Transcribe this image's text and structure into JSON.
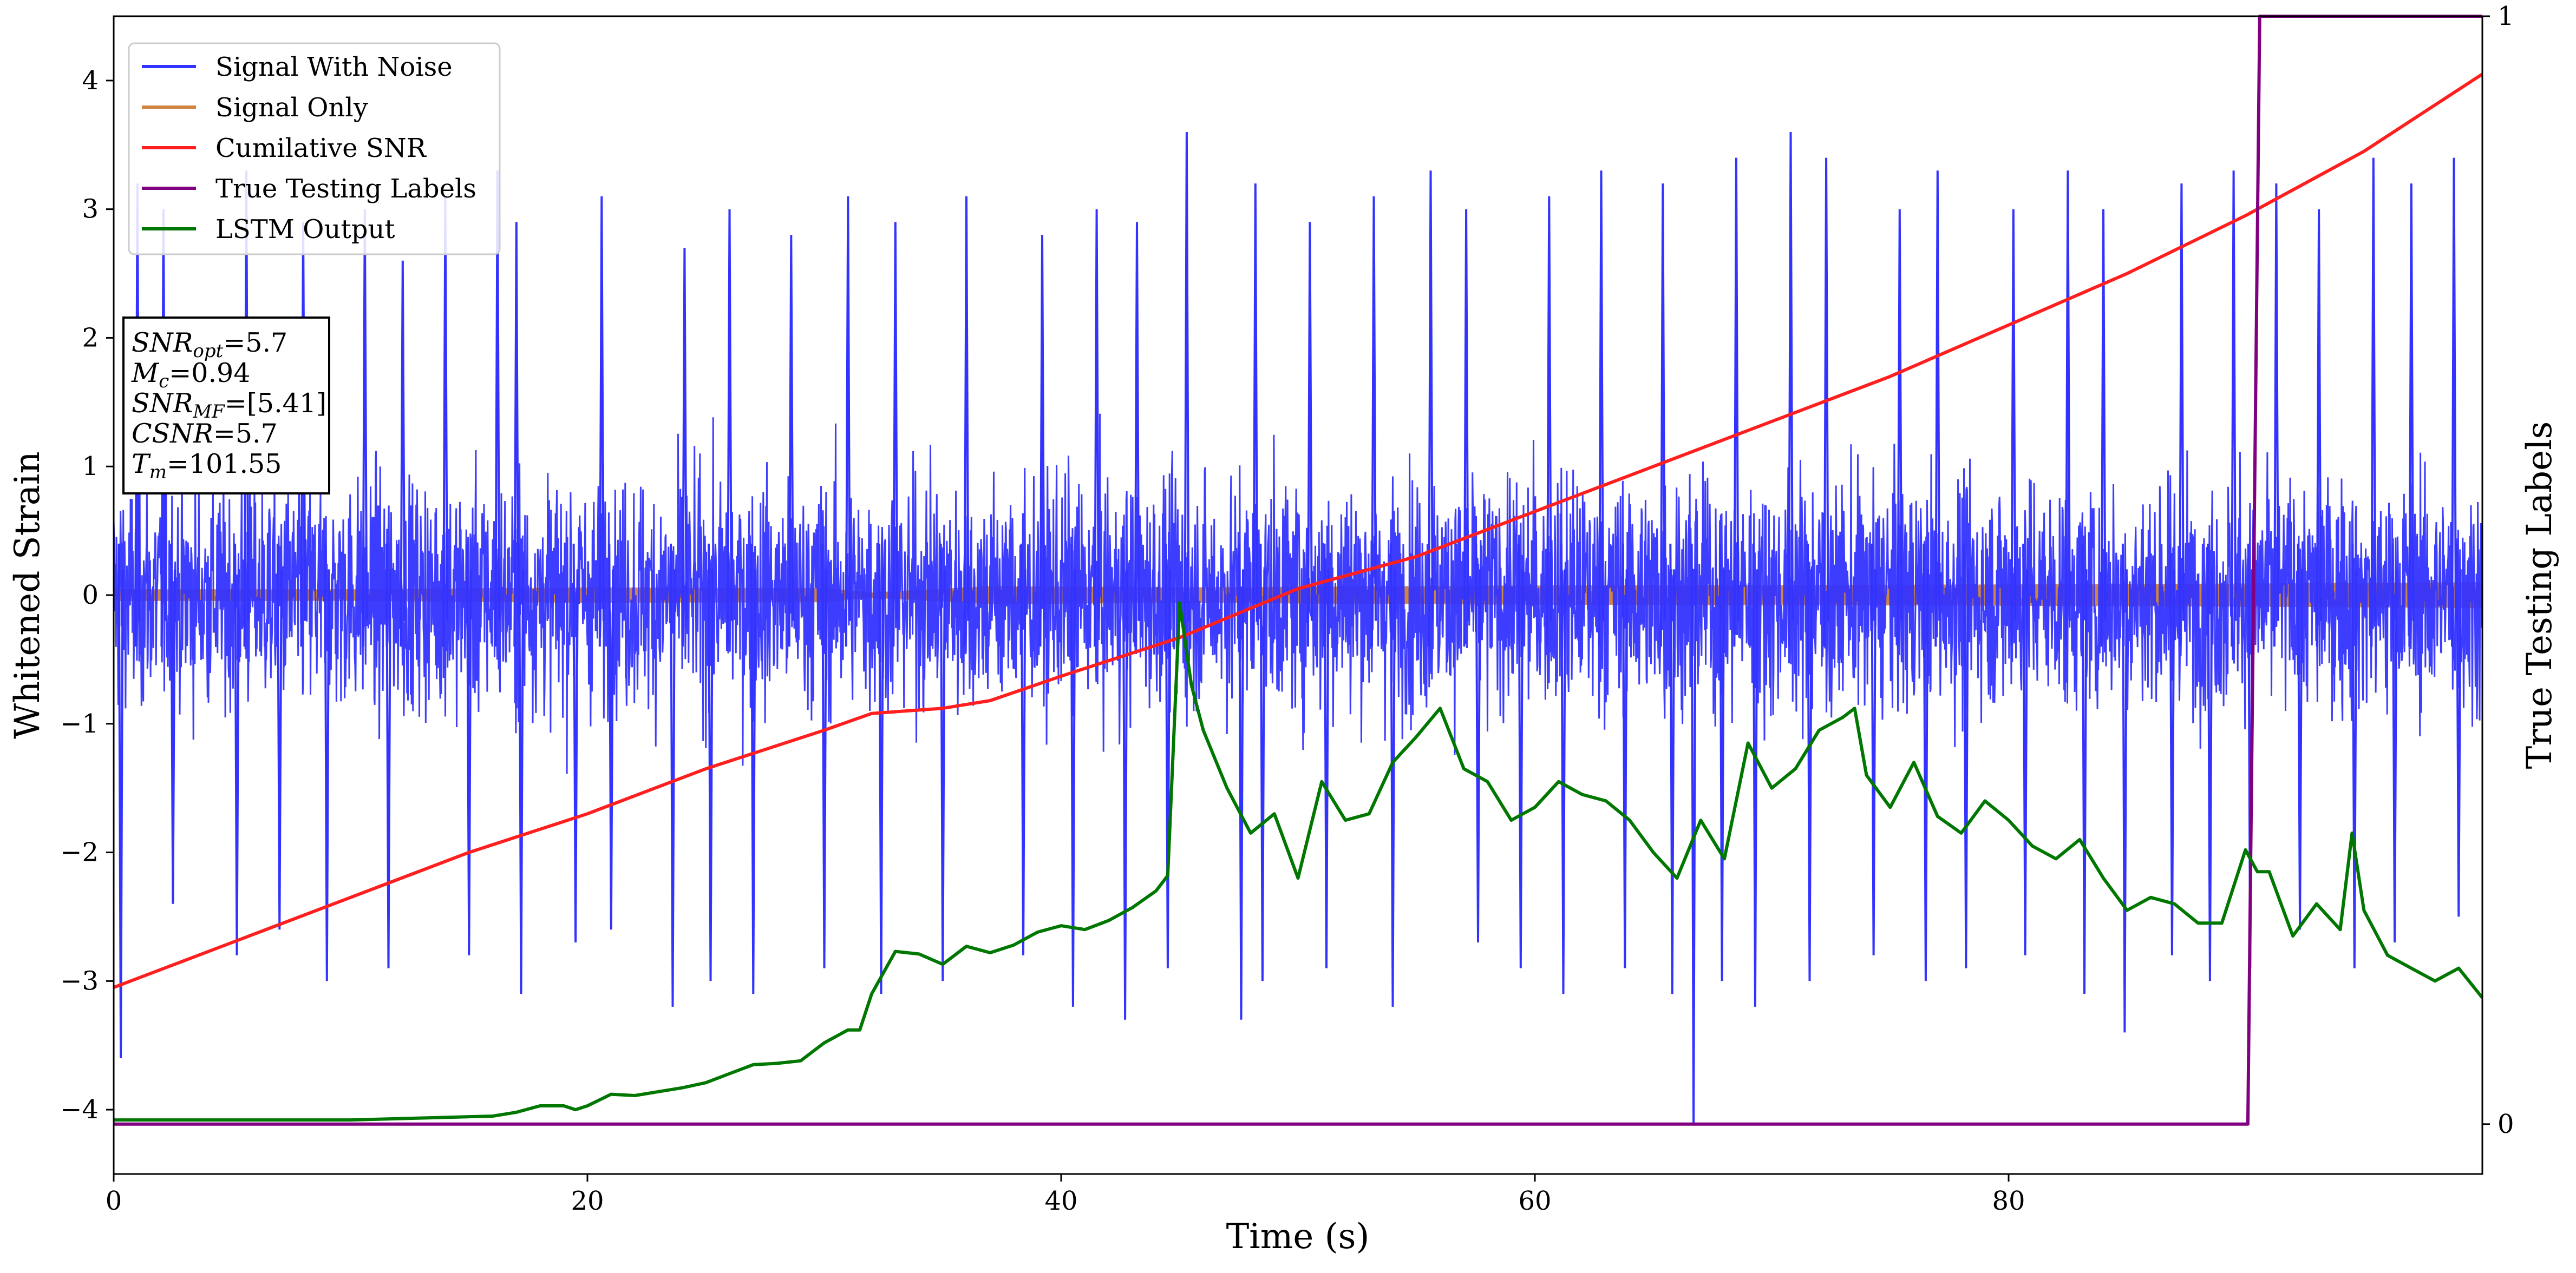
{
  "chart_data": {
    "type": "line",
    "xlabel": "Time (s)",
    "ylabel": "Whitened Strain",
    "y2label": "True Testing Labels",
    "xlim": [
      0,
      100
    ],
    "ylim": [
      -4.5,
      4.5
    ],
    "y2lim": [
      -0.045,
      1.0
    ],
    "x_ticks": [
      0,
      20,
      40,
      60,
      80
    ],
    "y_ticks": [
      -4,
      -3,
      -2,
      -1,
      0,
      1,
      2,
      3,
      4
    ],
    "y2_ticks": [
      0,
      1
    ],
    "grid": false,
    "legend_position": "top-left",
    "info_box": [
      {
        "base": "SNR",
        "sub": "opt",
        "value": "=5.7"
      },
      {
        "base": "M",
        "sub": "c",
        "value": "=0.94"
      },
      {
        "base": "SNR",
        "sub": "MF",
        "value": "=[5.41]"
      },
      {
        "base": "CSNR",
        "sub": "",
        "value": "=5.7"
      },
      {
        "base": "T",
        "sub": "m",
        "value": "=101.55"
      }
    ],
    "series": [
      {
        "name": "Signal With Noise",
        "color": "#3333ff",
        "axis": "left",
        "style": "dense noise band",
        "spikes_high": [
          [
            1.0,
            3.2
          ],
          [
            2.1,
            3.0
          ],
          [
            5.6,
            3.3
          ],
          [
            8.0,
            2.9
          ],
          [
            10.6,
            3.0
          ],
          [
            12.2,
            2.6
          ],
          [
            14.0,
            3.1
          ],
          [
            16.2,
            3.3
          ],
          [
            17.0,
            2.9
          ],
          [
            20.6,
            3.1
          ],
          [
            24.1,
            2.7
          ],
          [
            26.0,
            3.0
          ],
          [
            28.6,
            2.8
          ],
          [
            31.0,
            3.1
          ],
          [
            33.0,
            2.9
          ],
          [
            36.0,
            3.1
          ],
          [
            39.2,
            2.8
          ],
          [
            41.5,
            3.0
          ],
          [
            43.2,
            2.9
          ],
          [
            45.3,
            3.6
          ],
          [
            48.2,
            3.2
          ],
          [
            50.5,
            2.9
          ],
          [
            53.2,
            3.1
          ],
          [
            55.6,
            3.3
          ],
          [
            57.1,
            3.0
          ],
          [
            60.6,
            3.1
          ],
          [
            62.8,
            3.3
          ],
          [
            65.4,
            3.2
          ],
          [
            68.5,
            3.4
          ],
          [
            70.8,
            3.6
          ],
          [
            72.3,
            3.4
          ],
          [
            75.4,
            3.0
          ],
          [
            77.0,
            3.3
          ],
          [
            80.2,
            3.0
          ],
          [
            82.5,
            3.3
          ],
          [
            84.0,
            3.0
          ],
          [
            87.3,
            3.2
          ],
          [
            89.5,
            3.3
          ],
          [
            91.3,
            3.2
          ],
          [
            93.1,
            3.0
          ],
          [
            95.4,
            3.4
          ],
          [
            97.0,
            3.2
          ],
          [
            98.8,
            3.4
          ]
        ],
        "spikes_low": [
          [
            0.3,
            -3.6
          ],
          [
            2.5,
            -2.4
          ],
          [
            5.2,
            -2.8
          ],
          [
            7.0,
            -2.6
          ],
          [
            9.0,
            -3.0
          ],
          [
            11.6,
            -2.9
          ],
          [
            15.0,
            -2.8
          ],
          [
            17.2,
            -3.1
          ],
          [
            19.5,
            -2.7
          ],
          [
            21.0,
            -2.6
          ],
          [
            23.6,
            -3.2
          ],
          [
            25.2,
            -3.0
          ],
          [
            27.0,
            -3.1
          ],
          [
            30.0,
            -2.9
          ],
          [
            32.4,
            -3.1
          ],
          [
            35.0,
            -3.0
          ],
          [
            38.4,
            -2.8
          ],
          [
            40.5,
            -3.2
          ],
          [
            42.7,
            -3.3
          ],
          [
            44.5,
            -2.9
          ],
          [
            47.6,
            -3.3
          ],
          [
            48.5,
            -3.0
          ],
          [
            51.2,
            -2.9
          ],
          [
            54.0,
            -3.2
          ],
          [
            57.6,
            -2.7
          ],
          [
            59.4,
            -2.9
          ],
          [
            61.2,
            -3.1
          ],
          [
            63.8,
            -2.9
          ],
          [
            65.8,
            -3.1
          ],
          [
            66.7,
            -4.1
          ],
          [
            67.9,
            -3.0
          ],
          [
            69.3,
            -3.2
          ],
          [
            71.6,
            -3.0
          ],
          [
            74.3,
            -2.8
          ],
          [
            76.5,
            -3.0
          ],
          [
            78.2,
            -2.9
          ],
          [
            80.7,
            -2.8
          ],
          [
            83.2,
            -3.1
          ],
          [
            84.9,
            -3.4
          ],
          [
            86.9,
            -2.8
          ],
          [
            88.5,
            -3.0
          ],
          [
            90.2,
            -2.9
          ],
          [
            92.3,
            -2.6
          ],
          [
            94.6,
            -2.9
          ],
          [
            96.3,
            -2.7
          ],
          [
            99.0,
            -2.5
          ]
        ]
      },
      {
        "name": "Signal Only",
        "color": "#cd853f",
        "axis": "left",
        "style": "thin oscillating band",
        "amplitude": [
          [
            0,
            0.045
          ],
          [
            10,
            0.045
          ],
          [
            20,
            0.06
          ],
          [
            30,
            0.055
          ],
          [
            32,
            0.02
          ],
          [
            37,
            0.07
          ],
          [
            45,
            0.06
          ],
          [
            60,
            0.075
          ],
          [
            75,
            0.08
          ],
          [
            90,
            0.09
          ],
          [
            100,
            0.1
          ]
        ]
      },
      {
        "name": "Cumilative SNR",
        "color": "#ff1f1f",
        "axis": "left",
        "x": [
          0,
          5,
          10,
          15,
          20,
          25,
          30,
          32,
          35,
          37,
          40,
          45,
          50,
          55,
          60,
          65,
          70,
          75,
          80,
          85,
          90,
          95,
          100
        ],
        "y": [
          -3.05,
          -2.7,
          -2.35,
          -2.0,
          -1.7,
          -1.35,
          -1.05,
          -0.92,
          -0.88,
          -0.82,
          -0.63,
          -0.33,
          0.05,
          0.3,
          0.65,
          1.0,
          1.35,
          1.7,
          2.1,
          2.5,
          2.95,
          3.45,
          4.05
        ]
      },
      {
        "name": "True Testing Labels",
        "color": "#800080",
        "axis": "right",
        "x": [
          0,
          90.1,
          90.6,
          100
        ],
        "y": [
          0,
          0,
          1,
          1
        ]
      },
      {
        "name": "LSTM Output",
        "color": "#007700",
        "axis": "left",
        "x": [
          0,
          5,
          10,
          12,
          14,
          16,
          17,
          18,
          19,
          19.5,
          20,
          21,
          22,
          23,
          24,
          25,
          26,
          27,
          28,
          29,
          30,
          30.5,
          31,
          31.5,
          32,
          33,
          34,
          35,
          36,
          37,
          38,
          39,
          40,
          41,
          42,
          43,
          44,
          44.5,
          45,
          45.5,
          46,
          47,
          48,
          49,
          50,
          51,
          52,
          53,
          54,
          55,
          56,
          57,
          58,
          59,
          60,
          61,
          62,
          63,
          64,
          65,
          66,
          67,
          68,
          69,
          70,
          71,
          72,
          73,
          73.5,
          74,
          75,
          76,
          77,
          78,
          79,
          80,
          81,
          82,
          83,
          84,
          85,
          86,
          87,
          88,
          89,
          90,
          90.5,
          91,
          92,
          93,
          94,
          94.5,
          95,
          96,
          97,
          98,
          99,
          100
        ],
        "y": [
          -4.08,
          -4.08,
          -4.08,
          -4.07,
          -4.06,
          -4.05,
          -4.02,
          -3.97,
          -3.97,
          -4.0,
          -3.97,
          -3.88,
          -3.89,
          -3.86,
          -3.83,
          -3.79,
          -3.72,
          -3.65,
          -3.64,
          -3.62,
          -3.48,
          -3.43,
          -3.38,
          -3.38,
          -3.1,
          -2.77,
          -2.79,
          -2.87,
          -2.73,
          -2.78,
          -2.72,
          -2.62,
          -2.57,
          -2.6,
          -2.53,
          -2.43,
          -2.3,
          -2.18,
          -0.06,
          -0.7,
          -1.05,
          -1.5,
          -1.85,
          -1.7,
          -2.2,
          -1.45,
          -1.75,
          -1.7,
          -1.3,
          -1.1,
          -0.88,
          -1.35,
          -1.45,
          -1.75,
          -1.65,
          -1.45,
          -1.55,
          -1.6,
          -1.75,
          -2.0,
          -2.2,
          -1.75,
          -2.05,
          -1.15,
          -1.5,
          -1.35,
          -1.05,
          -0.95,
          -0.88,
          -1.4,
          -1.65,
          -1.3,
          -1.72,
          -1.85,
          -1.6,
          -1.75,
          -1.95,
          -2.05,
          -1.9,
          -2.2,
          -2.45,
          -2.35,
          -2.4,
          -2.55,
          -2.55,
          -1.98,
          -2.15,
          -2.15,
          -2.65,
          -2.4,
          -2.6,
          -1.85,
          -2.45,
          -2.8,
          -2.9,
          -3.0,
          -2.9,
          -3.13
        ]
      }
    ]
  }
}
